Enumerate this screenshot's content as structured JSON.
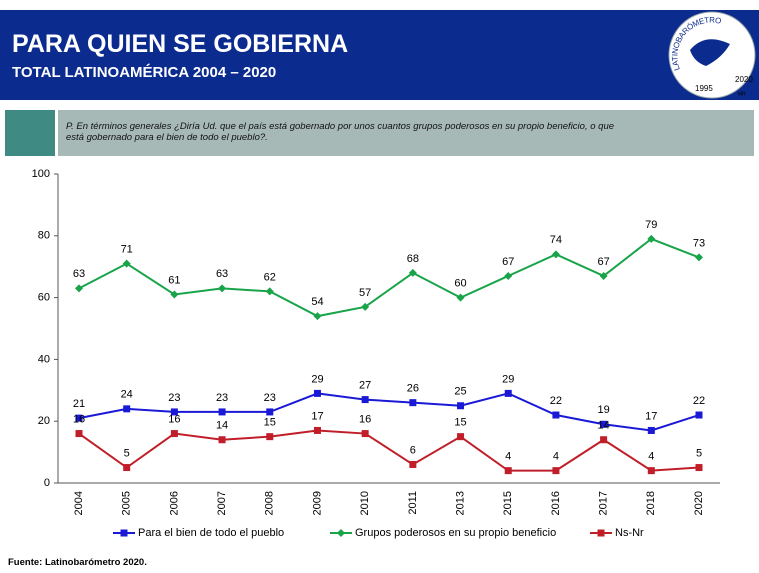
{
  "header": {
    "title": "PARA QUIEN SE GOBIERNA",
    "subtitle": "TOTAL LATINOAMÉRICA 2004 – 2020",
    "logo": {
      "name": "LATINOBARÓMETRO",
      "years": [
        "1995",
        "2020"
      ],
      "mark": "MR"
    }
  },
  "question": "P. En términos generales ¿Diría Ud. que el país está gobernado por unos cuantos grupos poderosos en su propio beneficio, o que está gobernado para el bien de todo el pueblo?.",
  "source": "Fuente: Latinobarómetro 2020.",
  "chart_data": {
    "type": "line",
    "categories": [
      "2004",
      "2005",
      "2006",
      "2007",
      "2008",
      "2009",
      "2010",
      "2011",
      "2013",
      "2015",
      "2016",
      "2017",
      "2018",
      "2020"
    ],
    "series": [
      {
        "name": "Para el bien de todo el pueblo",
        "color": "#1a1ad6",
        "marker": "square",
        "values": [
          21,
          24,
          23,
          23,
          23,
          29,
          27,
          26,
          25,
          29,
          22,
          19,
          17,
          22
        ]
      },
      {
        "name": "Grupos poderosos en su propio beneficio",
        "color": "#19a44a",
        "marker": "diamond",
        "values": [
          63,
          71,
          61,
          63,
          62,
          54,
          57,
          68,
          60,
          67,
          74,
          67,
          79,
          73
        ]
      },
      {
        "name": "Ns-Nr",
        "color": "#c01f2a",
        "marker": "square",
        "values": [
          16,
          5,
          16,
          14,
          15,
          17,
          16,
          6,
          15,
          4,
          4,
          14,
          4,
          5
        ]
      }
    ],
    "ylim": [
      0,
      100
    ],
    "yticks": [
      0,
      20,
      40,
      60,
      80,
      100
    ]
  }
}
